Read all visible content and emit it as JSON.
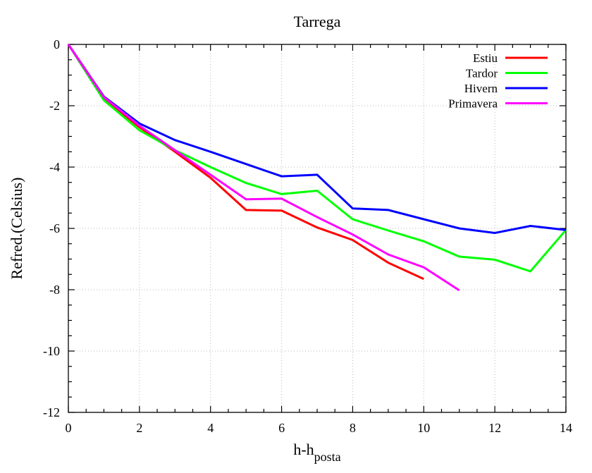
{
  "chart_data": {
    "type": "line",
    "title": "Tarrega",
    "xlabel_main": "h-h",
    "xlabel_sub": "posta",
    "ylabel": "Refred.(Celsius)",
    "xlim": [
      0,
      14
    ],
    "ylim": [
      -12,
      0
    ],
    "xticks": [
      0,
      2,
      4,
      6,
      8,
      10,
      12,
      14
    ],
    "yticks": [
      0,
      -2,
      -4,
      -6,
      -8,
      -10,
      -12
    ],
    "grid": true,
    "legend_position": "top-right",
    "series": [
      {
        "name": "Estiu",
        "color": "#ff0000",
        "x": [
          0,
          1,
          2,
          3,
          4,
          5,
          6,
          7,
          8,
          9,
          10
        ],
        "y": [
          0,
          -1.75,
          -2.7,
          -3.5,
          -4.35,
          -5.4,
          -5.42,
          -5.97,
          -6.38,
          -7.12,
          -7.65
        ]
      },
      {
        "name": "Tardor",
        "color": "#00ff00",
        "x": [
          0,
          1,
          2,
          3,
          4,
          5,
          6,
          7,
          8,
          9,
          10,
          11,
          12,
          13,
          14
        ],
        "y": [
          0,
          -1.82,
          -2.8,
          -3.45,
          -4.0,
          -4.52,
          -4.88,
          -4.77,
          -5.7,
          -6.07,
          -6.42,
          -6.92,
          -7.02,
          -7.4,
          -6.05
        ]
      },
      {
        "name": "Hivern",
        "color": "#0000ff",
        "x": [
          0,
          1,
          2,
          3,
          4,
          5,
          6,
          7,
          8,
          9,
          10,
          11,
          12,
          13,
          14
        ],
        "y": [
          0,
          -1.7,
          -2.58,
          -3.12,
          -3.5,
          -3.9,
          -4.3,
          -4.25,
          -5.35,
          -5.4,
          -5.7,
          -6.0,
          -6.15,
          -5.92,
          -6.05
        ]
      },
      {
        "name": "Primavera",
        "color": "#ff00ff",
        "x": [
          0,
          1,
          2,
          3,
          4,
          5,
          6,
          7,
          8,
          9,
          10,
          11
        ],
        "y": [
          0,
          -1.72,
          -2.65,
          -3.45,
          -4.25,
          -5.05,
          -5.03,
          -5.63,
          -6.2,
          -6.85,
          -7.27,
          -8.02
        ]
      }
    ]
  }
}
